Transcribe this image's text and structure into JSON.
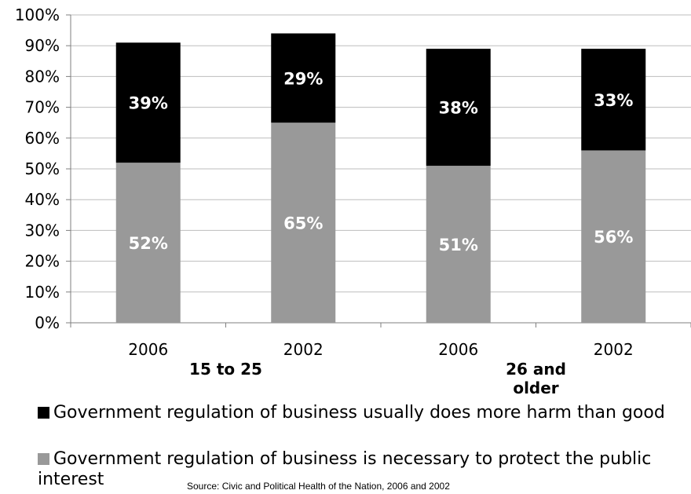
{
  "chart_data": {
    "type": "bar",
    "stacked": true,
    "categories": [
      "2006",
      "2002",
      "2006",
      "2002"
    ],
    "groups": [
      {
        "label": "15 to 25",
        "categories": [
          "2006",
          "2002"
        ]
      },
      {
        "label": "26 and older",
        "categories": [
          "2006",
          "2002"
        ]
      }
    ],
    "series": [
      {
        "name": "Government regulation of business is necessary to protect the public interest",
        "values": [
          52,
          65,
          51,
          56
        ],
        "color": "#999999",
        "labels": [
          "52%",
          "65%",
          "51%",
          "56%"
        ]
      },
      {
        "name": "Government regulation of business usually does more harm than good",
        "values": [
          39,
          29,
          38,
          33
        ],
        "color": "#000000",
        "labels": [
          "39%",
          "29%",
          "38%",
          "33%"
        ]
      }
    ],
    "ylim": [
      0,
      100
    ],
    "yticks": [
      "0%",
      "10%",
      "20%",
      "30%",
      "40%",
      "50%",
      "60%",
      "70%",
      "80%",
      "90%",
      "100%"
    ],
    "grid": true,
    "legend_position": "bottom"
  },
  "legend": {
    "harm": "Government regulation of business usually does more harm than good",
    "necessary": "Government regulation of business is necessary to protect the public interest"
  },
  "source": "Source:  Civic and Political Health of the Nation, 2006 and 2002"
}
